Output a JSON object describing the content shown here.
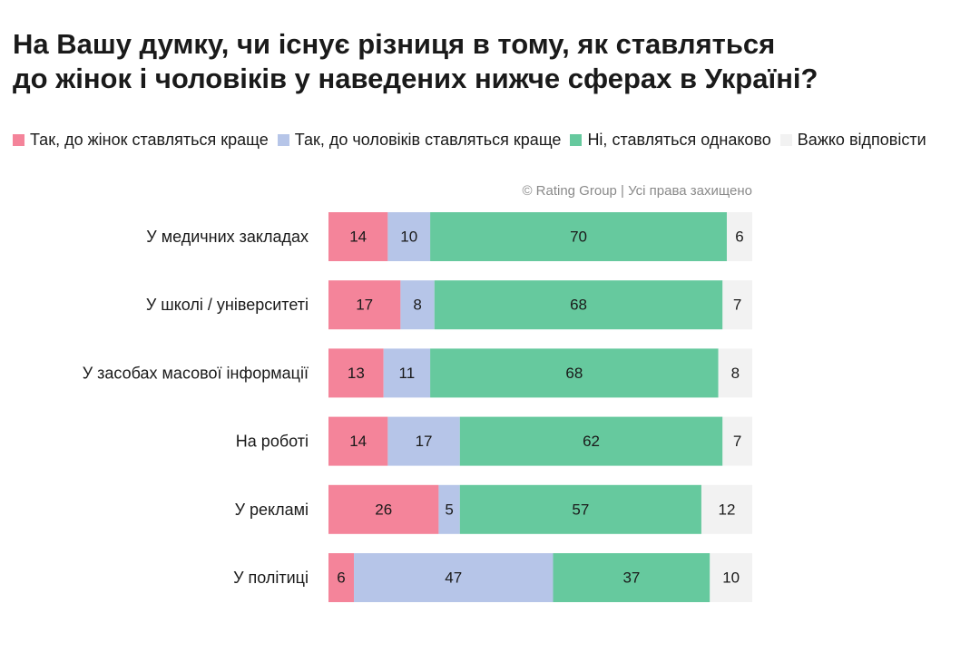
{
  "title_lines": [
    "На Вашу думку, чи існує різниця в тому, як ставляться",
    "до жінок і чоловіків у наведених нижче сферах в Україні?"
  ],
  "copyright": "© Rating Group | Усі права захищено",
  "chart_data": {
    "type": "bar",
    "orientation": "horizontal",
    "stacked": true,
    "title": "На Вашу думку, чи існує різниця в тому, як ставляться до жінок і чоловіків у наведених нижче сферах в Україні?",
    "categories": [
      "У медичних закладах",
      "У школі / університеті",
      "У засобах масової інформації",
      "На роботі",
      "У рекламі",
      "У політиці"
    ],
    "series": [
      {
        "name": "Так, до жінок ставляться краще",
        "color": "#f4849a",
        "values": [
          14,
          17,
          13,
          14,
          26,
          6
        ]
      },
      {
        "name": "Так, до чоловіків ставляться краще",
        "color": "#b6c5e8",
        "values": [
          10,
          8,
          11,
          17,
          5,
          47
        ]
      },
      {
        "name": "Ні, ставляться однаково",
        "color": "#66c99e",
        "values": [
          70,
          68,
          68,
          62,
          57,
          37
        ]
      },
      {
        "name": "Важко відповісти",
        "color": "#f2f2f2",
        "values": [
          6,
          7,
          8,
          7,
          12,
          10
        ]
      }
    ],
    "xlim": [
      0,
      100
    ],
    "legend_position": "top",
    "grid": false
  }
}
